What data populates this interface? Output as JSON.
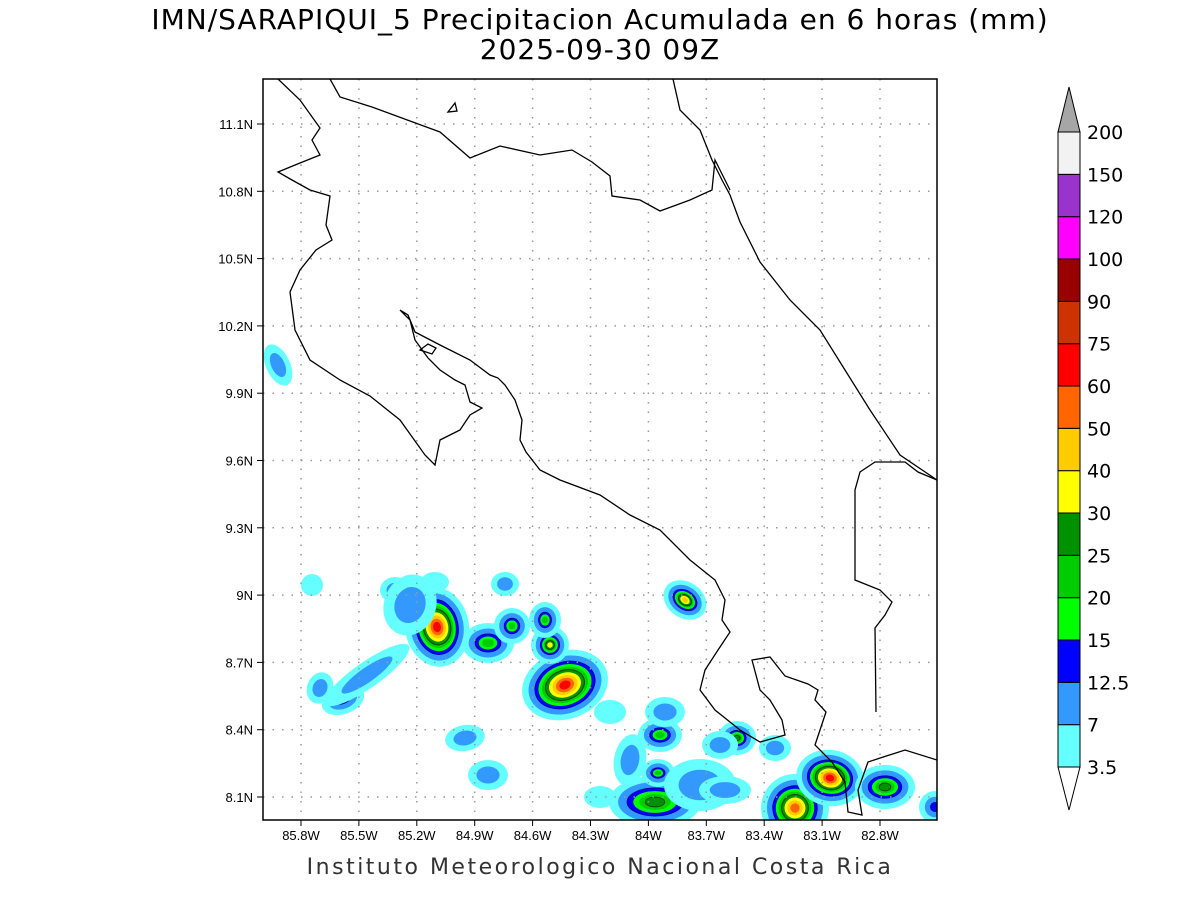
{
  "title": {
    "line1": "IMN/SARAPIQUI_5 Precipitacion Acumulada en 6 horas (mm)",
    "line2": "2025-09-30 09Z"
  },
  "footer": "Instituto Meteorologico Nacional Costa Rica",
  "map": {
    "lon_ticks": [
      "85.8W",
      "85.5W",
      "85.2W",
      "84.9W",
      "84.6W",
      "84.3W",
      "84W",
      "83.7W",
      "83.4W",
      "83.1W",
      "82.8W"
    ],
    "lat_ticks": [
      "11.1N",
      "10.8N",
      "10.5N",
      "10.2N",
      "9.9N",
      "9.6N",
      "9.3N",
      "9N",
      "8.7N",
      "8.4N",
      "8.1N"
    ],
    "grid": "dotted"
  },
  "colorbar": {
    "labels": [
      "3.5",
      "7",
      "12.5",
      "15",
      "20",
      "25",
      "30",
      "40",
      "50",
      "60",
      "75",
      "90",
      "100",
      "120",
      "150",
      "200"
    ],
    "colors": [
      "#66ffff",
      "#3399ff",
      "#0000ff",
      "#00ff00",
      "#00cc00",
      "#009100",
      "#ffff00",
      "#ffcc00",
      "#ff6600",
      "#ff0000",
      "#cc3300",
      "#990000",
      "#ff00ff",
      "#9933cc",
      "#f2f2f2"
    ],
    "over_color": "#a6a6a6",
    "under_color": "#ffffff"
  }
}
